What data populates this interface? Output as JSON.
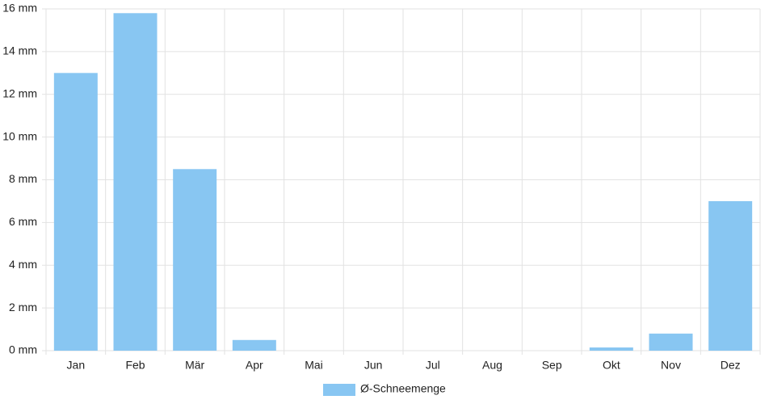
{
  "chart_data": {
    "type": "bar",
    "categories": [
      "Jan",
      "Feb",
      "Mär",
      "Apr",
      "Mai",
      "Jun",
      "Jul",
      "Aug",
      "Sep",
      "Okt",
      "Nov",
      "Dez"
    ],
    "series": [
      {
        "name": "Ø-Schneemenge",
        "color": "#88c6f2",
        "values": [
          13,
          15.8,
          8.5,
          0.5,
          0,
          0,
          0,
          0,
          0,
          0.15,
          0.8,
          7
        ]
      }
    ],
    "ylim": [
      0,
      16
    ],
    "yticks": [
      {
        "value": 0,
        "label": "0 mm"
      },
      {
        "value": 2,
        "label": "2 mm"
      },
      {
        "value": 4,
        "label": "4 mm"
      },
      {
        "value": 6,
        "label": "6 mm"
      },
      {
        "value": 8,
        "label": "8 mm"
      },
      {
        "value": 10,
        "label": "10 mm"
      },
      {
        "value": 12,
        "label": "12 mm"
      },
      {
        "value": 14,
        "label": "14 mm"
      },
      {
        "value": 16,
        "label": "16 mm"
      }
    ],
    "grid": true,
    "legend": "bottom"
  }
}
